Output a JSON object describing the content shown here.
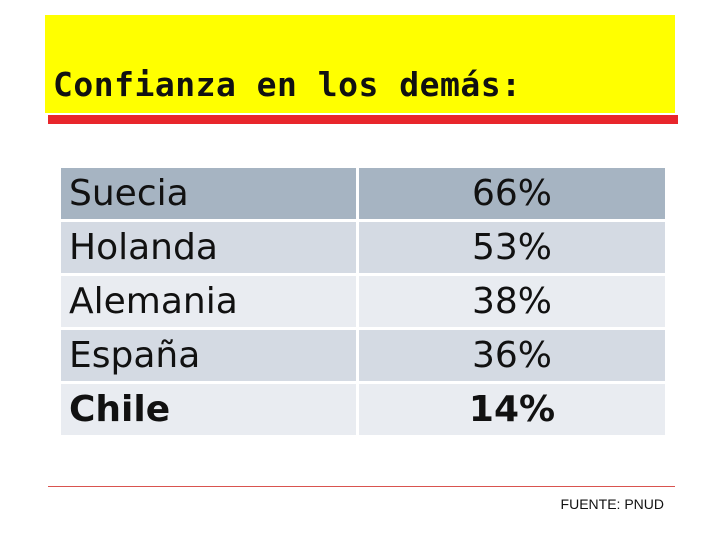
{
  "title": "Confianza en los demás:",
  "colors": {
    "title_background": "#ffff00",
    "title_underline": "#e8262b",
    "table_header_row": "#a6b4c2",
    "table_row_odd": "#d4dae3",
    "table_row_even": "#e9ecf1",
    "source_rule": "#d9534f"
  },
  "table": {
    "rows": [
      {
        "country": "Suecia",
        "value": "66%",
        "bold": false
      },
      {
        "country": "Holanda",
        "value": "53%",
        "bold": false
      },
      {
        "country": "Alemania",
        "value": "38%",
        "bold": false
      },
      {
        "country": "España",
        "value": "36%",
        "bold": false
      },
      {
        "country": "Chile",
        "value": "14%",
        "bold": true
      }
    ]
  },
  "source": "FUENTE: PNUD"
}
